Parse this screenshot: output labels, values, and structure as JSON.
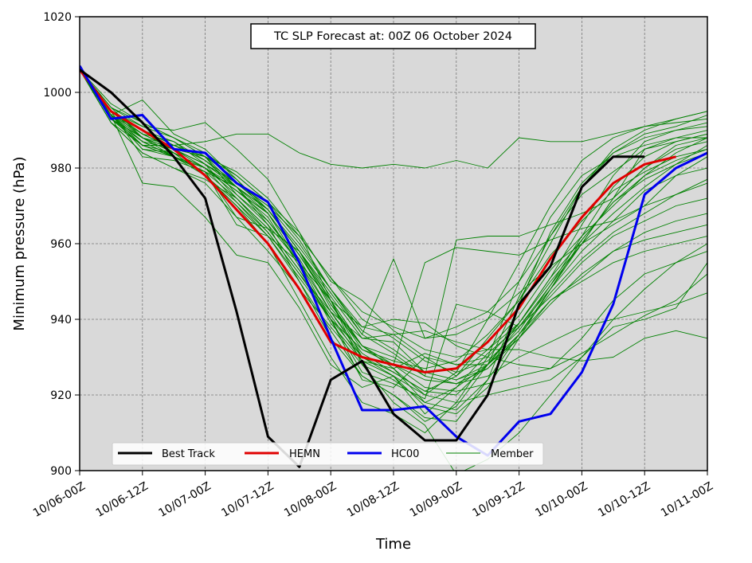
{
  "chart_data": {
    "type": "line",
    "title": "TC SLP Forecast at: 00Z 06 October 2024",
    "xlabel": "Time",
    "ylabel": "Minimum pressure (hPa)",
    "ylim": [
      900,
      1020
    ],
    "yticks": [
      900,
      920,
      940,
      960,
      980,
      1000,
      1020
    ],
    "xticks": [
      "10/06-00Z",
      "10/06-12Z",
      "10/07-00Z",
      "10/07-12Z",
      "10/08-00Z",
      "10/08-12Z",
      "10/09-00Z",
      "10/09-12Z",
      "10/10-00Z",
      "10/10-12Z",
      "10/11-00Z"
    ],
    "x_hours": [
      0,
      6,
      12,
      18,
      24,
      30,
      36,
      42,
      48,
      54,
      60,
      66,
      72,
      78,
      84,
      90,
      96,
      102,
      108,
      114,
      120
    ],
    "xlim_hours": [
      0,
      120
    ],
    "grid": true,
    "background": "#d9d9d9",
    "legend_position": "lower center",
    "series": [
      {
        "name": "Best Track",
        "color": "#000000",
        "values": [
          1006,
          1000,
          992,
          983,
          972,
          942,
          909,
          901,
          924,
          929,
          915,
          908,
          908,
          920,
          944,
          954,
          975,
          983,
          983,
          null,
          null
        ]
      },
      {
        "name": "HEMN",
        "color": "#e00000",
        "values": [
          1006,
          995,
          990,
          985,
          978,
          969,
          960,
          948,
          934,
          930,
          928,
          926,
          927,
          934,
          943,
          956,
          967,
          976,
          981,
          983,
          null
        ]
      },
      {
        "name": "HC00",
        "color": "#0000ee",
        "values": [
          1007,
          993,
          994,
          985,
          984,
          976,
          971,
          955,
          935,
          916,
          916,
          917,
          909,
          904,
          913,
          915,
          926,
          944,
          973,
          980,
          984
        ]
      },
      {
        "name": "Member",
        "color": "#008000",
        "members": [
          [
            1007,
            994,
            998,
            989,
            985,
            977,
            968,
            955,
            940,
            924,
            922,
            930,
            925,
            935,
            945,
            960,
            975,
            985,
            990,
            993,
            995
          ],
          [
            1006,
            996,
            991,
            990,
            992,
            985,
            977,
            963,
            945,
            933,
            927,
            920,
            926,
            940,
            955,
            970,
            982,
            988,
            991,
            993,
            995
          ],
          [
            1006,
            993,
            986,
            986,
            983,
            975,
            965,
            950,
            935,
            925,
            920,
            913,
            917,
            928,
            946,
            962,
            973,
            979,
            985,
            987,
            989
          ],
          [
            1006,
            994,
            985,
            984,
            978,
            970,
            960,
            945,
            930,
            918,
            915,
            910,
            918,
            930,
            950,
            967,
            978,
            983,
            986,
            988,
            990
          ],
          [
            1006,
            995,
            988,
            983,
            980,
            974,
            968,
            957,
            945,
            930,
            926,
            921,
            925,
            932,
            941,
            953,
            962,
            970,
            978,
            982,
            985
          ],
          [
            1006,
            992,
            984,
            980,
            976,
            967,
            958,
            948,
            938,
            928,
            924,
            918,
            922,
            931,
            938,
            948,
            960,
            972,
            980,
            985,
            987
          ],
          [
            1006,
            994,
            989,
            987,
            981,
            972,
            963,
            952,
            940,
            930,
            925,
            917,
            915,
            922,
            935,
            948,
            958,
            966,
            974,
            978,
            983
          ],
          [
            1006,
            997,
            992,
            988,
            983,
            973,
            965,
            955,
            942,
            931,
            926,
            921,
            920,
            928,
            939,
            951,
            961,
            971,
            977,
            981,
            984
          ],
          [
            1006,
            993,
            987,
            985,
            980,
            971,
            962,
            950,
            937,
            925,
            920,
            914,
            913,
            924,
            944,
            963,
            976,
            984,
            988,
            990,
            992
          ],
          [
            1006,
            995,
            990,
            984,
            978,
            970,
            962,
            951,
            940,
            932,
            929,
            927,
            929,
            936,
            945,
            957,
            966,
            974,
            979,
            983,
            985
          ],
          [
            1006,
            996,
            988,
            985,
            983,
            979,
            972,
            962,
            951,
            942,
            938,
            935,
            936,
            940,
            947,
            954,
            960,
            965,
            970,
            973,
            976
          ],
          [
            1006,
            994,
            990,
            986,
            983,
            978,
            971,
            961,
            948,
            937,
            932,
            926,
            924,
            928,
            936,
            945,
            950,
            955,
            958,
            960,
            962
          ],
          [
            1006,
            995,
            989,
            985,
            981,
            976,
            970,
            960,
            948,
            936,
            931,
            925,
            923,
            927,
            935,
            944,
            952,
            958,
            961,
            963,
            965
          ],
          [
            1006,
            993,
            986,
            983,
            979,
            975,
            969,
            958,
            945,
            933,
            928,
            924,
            923,
            925,
            930,
            934,
            938,
            940,
            942,
            944,
            947
          ],
          [
            1006,
            994,
            988,
            984,
            980,
            974,
            968,
            957,
            944,
            932,
            928,
            922,
            921,
            923,
            925,
            927,
            935,
            945,
            952,
            955,
            958
          ],
          [
            1006,
            992,
            984,
            980,
            977,
            972,
            964,
            953,
            941,
            929,
            925,
            920,
            918,
            920,
            922,
            924,
            930,
            938,
            940,
            943,
            955
          ],
          [
            1006,
            994,
            987,
            983,
            978,
            971,
            963,
            952,
            942,
            935,
            936,
            937,
            934,
            932,
            932,
            930,
            929,
            930,
            935,
            937,
            935
          ],
          [
            1006,
            995,
            989,
            985,
            981,
            975,
            966,
            955,
            945,
            938,
            940,
            939,
            933,
            930,
            928,
            927,
            931,
            936,
            941,
            945,
            952
          ],
          [
            1006,
            993,
            988,
            986,
            987,
            989,
            989,
            984,
            981,
            980,
            981,
            980,
            982,
            980,
            988,
            987,
            987,
            989,
            991,
            992,
            993
          ],
          [
            1006,
            994,
            976,
            975,
            967,
            957,
            955,
            943,
            928,
            922,
            925,
            915,
            922,
            928,
            938,
            946,
            955,
            962,
            966,
            970,
            972
          ],
          [
            1006,
            995,
            983,
            982,
            979,
            965,
            962,
            955,
            945,
            928,
            918,
            912,
            899,
            903,
            910,
            920,
            930,
            940,
            948,
            955,
            960
          ],
          [
            1006,
            994,
            985,
            983,
            979,
            967,
            964,
            958,
            943,
            933,
            927,
            931,
            928,
            928,
            935,
            945,
            951,
            958,
            963,
            966,
            968
          ],
          [
            1006,
            992,
            986,
            984,
            980,
            975,
            969,
            958,
            946,
            935,
            934,
            926,
            924,
            927,
            936,
            947,
            956,
            963,
            968,
            973,
            977
          ],
          [
            1006,
            995,
            990,
            987,
            982,
            976,
            969,
            959,
            948,
            938,
            936,
            930,
            928,
            930,
            939,
            950,
            960,
            968,
            975,
            981,
            986
          ],
          [
            1006,
            994,
            986,
            983,
            980,
            974,
            967,
            954,
            939,
            929,
            927,
            918,
            916,
            924,
            936,
            948,
            961,
            971,
            978,
            984,
            988
          ],
          [
            1006,
            993,
            988,
            985,
            981,
            976,
            970,
            962,
            951,
            940,
            935,
            929,
            926,
            929,
            937,
            949,
            962,
            975,
            983,
            987,
            989
          ],
          [
            1006,
            996,
            992,
            988,
            984,
            978,
            971,
            963,
            950,
            945,
            937,
            932,
            930,
            932,
            939,
            951,
            965,
            978,
            987,
            990,
            991
          ],
          [
            1006,
            995,
            991,
            988,
            983,
            977,
            969,
            958,
            947,
            936,
            956,
            935,
            938,
            942,
            950,
            962,
            975,
            984,
            989,
            991,
            994
          ],
          [
            1006,
            993,
            988,
            984,
            980,
            973,
            966,
            956,
            942,
            930,
            928,
            955,
            959,
            958,
            957,
            961,
            964,
            966,
            970,
            978,
            980
          ],
          [
            1006,
            994,
            987,
            983,
            979,
            972,
            964,
            953,
            940,
            926,
            923,
            919,
            944,
            942,
            938,
            949,
            960,
            972,
            985,
            988,
            988
          ],
          [
            1006,
            995,
            990,
            986,
            982,
            975,
            968,
            957,
            944,
            933,
            930,
            925,
            961,
            962,
            962,
            965,
            968,
            972,
            980,
            986,
            988
          ]
        ]
      }
    ]
  }
}
